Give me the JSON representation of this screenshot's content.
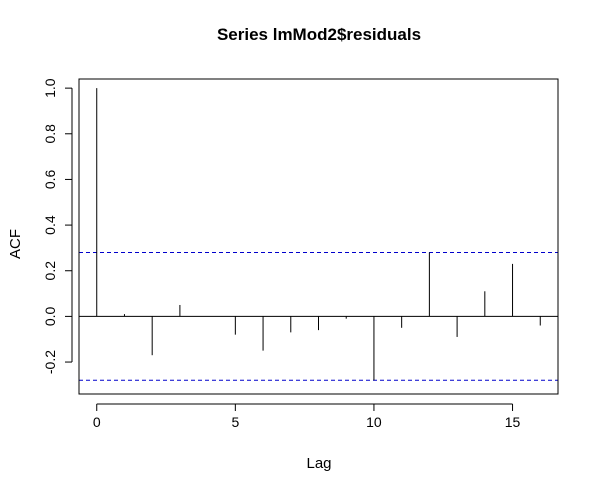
{
  "chart_data": {
    "type": "bar",
    "title": "Series  lmMod2$residuals",
    "xlabel": "Lag",
    "ylabel": "ACF",
    "xlim": [
      -0.64,
      16.64
    ],
    "ylim": [
      -0.34,
      1.04
    ],
    "x_ticks": [
      0,
      5,
      10,
      15
    ],
    "x_tick_labels": [
      "0",
      "5",
      "10",
      "15"
    ],
    "y_ticks": [
      -0.2,
      0.0,
      0.2,
      0.4,
      0.6,
      0.8,
      1.0
    ],
    "y_tick_labels": [
      "-0.2",
      "0.0",
      "0.2",
      "0.4",
      "0.6",
      "0.8",
      "1.0"
    ],
    "lags": [
      0,
      1,
      2,
      3,
      4,
      5,
      6,
      7,
      8,
      9,
      10,
      11,
      12,
      13,
      14,
      15,
      16
    ],
    "values": [
      1.0,
      0.01,
      -0.17,
      0.05,
      0.0,
      -0.08,
      -0.15,
      -0.07,
      -0.06,
      -0.01,
      -0.28,
      -0.05,
      0.28,
      -0.09,
      0.11,
      0.23,
      -0.04
    ],
    "confidence_bounds": [
      0.28,
      -0.28
    ],
    "confidence_color": "#0000CC",
    "bar_color": "#000000",
    "grid": false,
    "legend": "none"
  }
}
